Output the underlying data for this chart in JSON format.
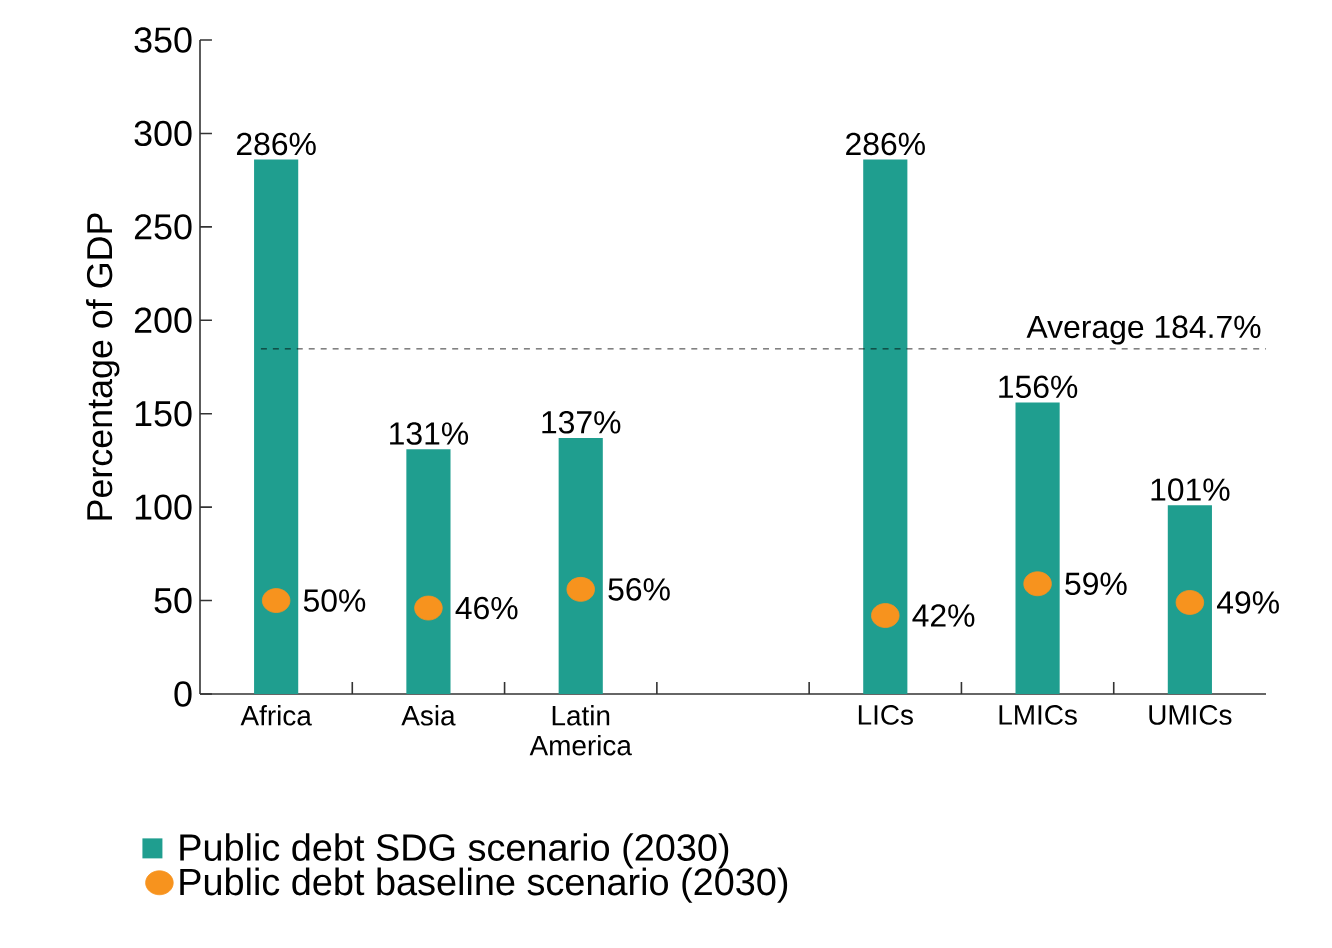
{
  "chart_data": {
    "type": "bar",
    "ylabel": "Percentage of GDP",
    "categories": [
      "Africa",
      "Asia",
      "Latin America",
      null,
      "LICs",
      "LMICs",
      "UMICs"
    ],
    "series": [
      {
        "name": "Public debt SDG scenario (2030)",
        "color": "#1f9e8f",
        "values": [
          286,
          131,
          137,
          null,
          286,
          156,
          101
        ],
        "value_labels": [
          "286%",
          "131%",
          "137%",
          null,
          "286%",
          "156%",
          "101%"
        ]
      },
      {
        "name": "Public debt baseline scenario (2030)",
        "type": "scatter",
        "color": "#f7931e",
        "values": [
          50,
          46,
          56,
          null,
          42,
          59,
          49
        ],
        "value_labels": [
          "50%",
          "46%",
          "56%",
          null,
          "42%",
          "59%",
          "49%"
        ]
      }
    ],
    "ylim": [
      0,
      350
    ],
    "yticks": [
      0,
      50,
      100,
      150,
      200,
      250,
      300,
      350
    ],
    "ref_lines": [
      {
        "axis": "y",
        "value": 184.7,
        "label": "Average 184.7%",
        "line_style": "dashed"
      }
    ],
    "legend": "bottom"
  }
}
